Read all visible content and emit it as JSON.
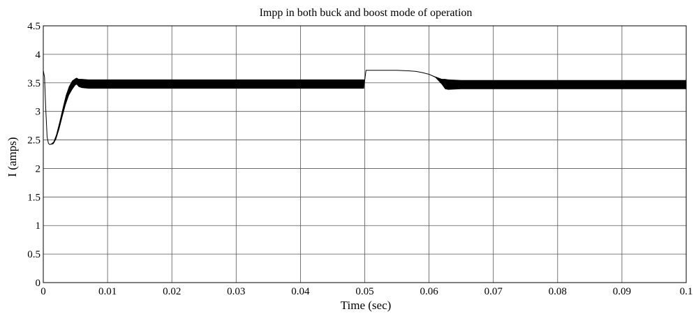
{
  "chart_data": {
    "type": "line",
    "title": "Impp in both buck and boost mode of operation",
    "xlabel": "Time (sec)",
    "ylabel": "I (amps)",
    "xlim": [
      0,
      0.1
    ],
    "ylim": [
      0,
      4.5
    ],
    "x_ticks": [
      0,
      0.01,
      0.02,
      0.03,
      0.04,
      0.05,
      0.06,
      0.07,
      0.08,
      0.09,
      0.1
    ],
    "x_tick_labels": [
      "0",
      "0.01",
      "0.02",
      "0.03",
      "0.04",
      "0.05",
      "0.06",
      "0.07",
      "0.08",
      "0.09",
      "0.1"
    ],
    "y_ticks": [
      0,
      0.5,
      1,
      1.5,
      2,
      2.5,
      3,
      3.5,
      4,
      4.5
    ],
    "y_tick_labels": [
      "0",
      "0.5",
      "1",
      "1.5",
      "2",
      "2.5",
      "3",
      "3.5",
      "4",
      "4.5"
    ],
    "grid": true,
    "legend": "none",
    "series": [
      {
        "x": [
          0,
          0.0002,
          0.0004,
          0.0006,
          0.0008,
          0.001,
          0.0013,
          0.0016,
          0.002,
          0.0025,
          0.003,
          0.0035,
          0.004,
          0.0045,
          0.005,
          0.0052,
          0.0055,
          0.006,
          0.007,
          0.01,
          0.02,
          0.03,
          0.04,
          0.0499,
          0.05,
          0.0502,
          0.052,
          0.055,
          0.057,
          0.058,
          0.059,
          0.06,
          0.061,
          0.062,
          0.0625,
          0.063,
          0.065,
          0.07,
          0.08,
          0.09,
          0.1
        ],
        "y": [
          3.72,
          3.6,
          3.0,
          2.55,
          2.44,
          2.42,
          2.43,
          2.45,
          2.55,
          2.75,
          2.98,
          3.2,
          3.36,
          3.46,
          3.52,
          3.53,
          3.5,
          3.49,
          3.48,
          3.48,
          3.48,
          3.48,
          3.48,
          3.48,
          3.55,
          3.72,
          3.72,
          3.72,
          3.71,
          3.7,
          3.68,
          3.65,
          3.6,
          3.52,
          3.48,
          3.47,
          3.47,
          3.47,
          3.47,
          3.47,
          3.47
        ],
        "ripple_amplitude": [
          0,
          0,
          0,
          0,
          0,
          0,
          0.01,
          0.02,
          0.04,
          0.06,
          0.07,
          0.08,
          0.08,
          0.08,
          0.06,
          0.06,
          0.07,
          0.08,
          0.08,
          0.08,
          0.08,
          0.08,
          0.08,
          0.08,
          0,
          0,
          0,
          0,
          0,
          0,
          0,
          0,
          0.01,
          0.05,
          0.09,
          0.09,
          0.08,
          0.08,
          0.08,
          0.08,
          0.08
        ]
      }
    ]
  }
}
